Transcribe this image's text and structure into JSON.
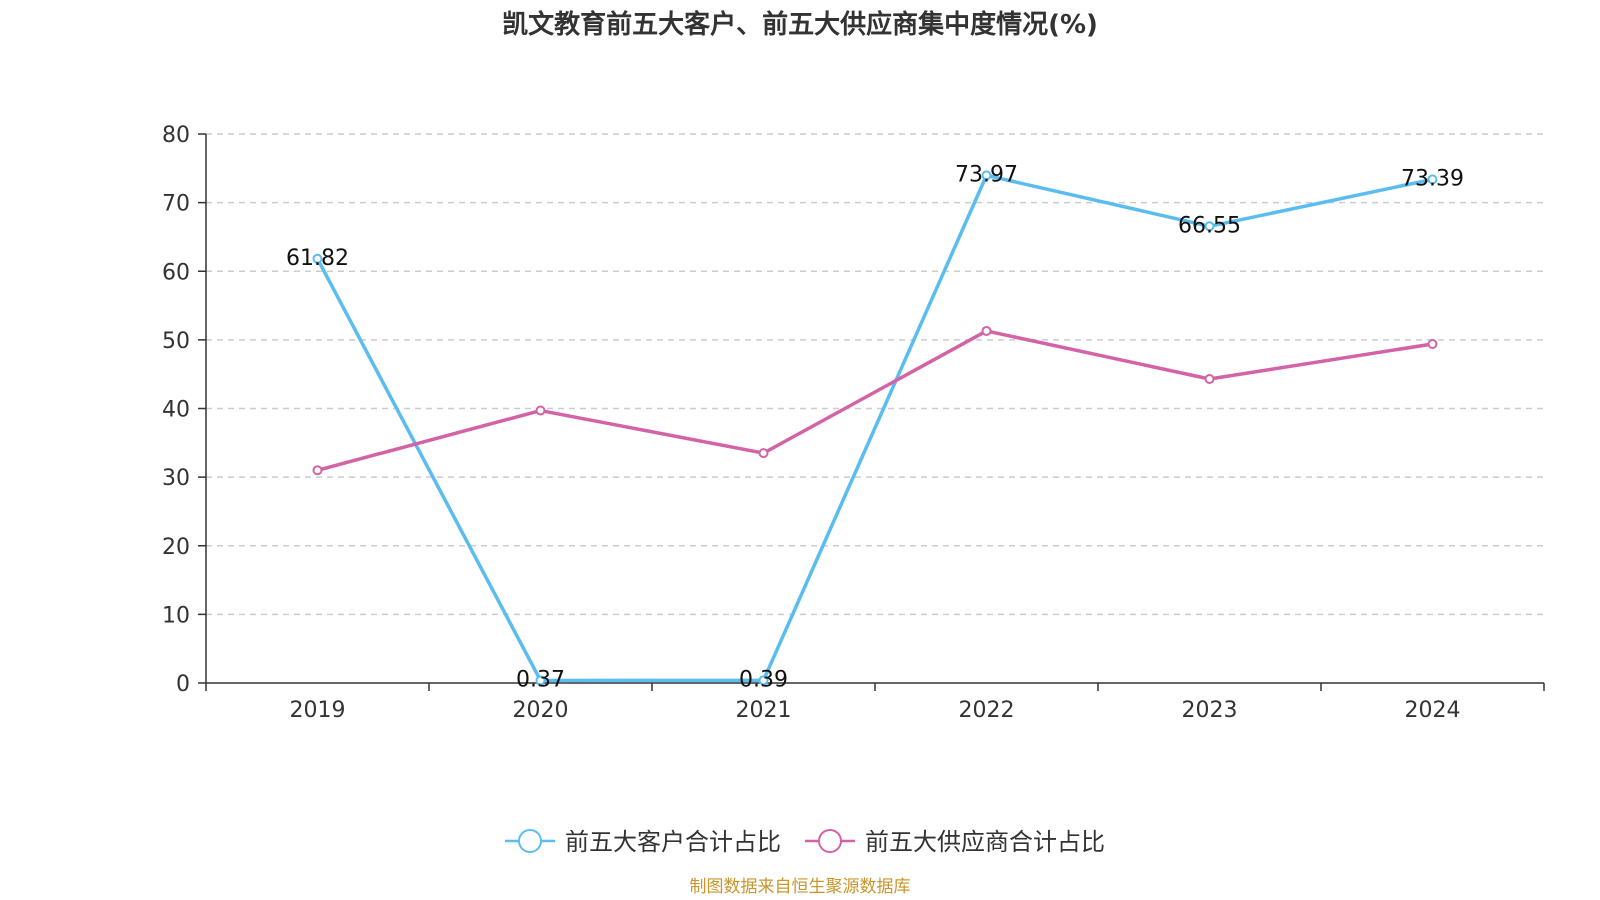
{
  "chart_data": {
    "type": "line",
    "title": "凯文教育前五大客户、前五大供应商集中度情况(%)",
    "categories": [
      "2019",
      "2020",
      "2021",
      "2022",
      "2023",
      "2024"
    ],
    "ylim": [
      0,
      80
    ],
    "yticks": [
      0,
      10,
      20,
      30,
      40,
      50,
      60,
      70,
      80
    ],
    "grid": "horizontal-dashed",
    "legend_position": "bottom-center",
    "series": [
      {
        "name": "前五大客户合计占比",
        "color": "#5bbcf0",
        "values": [
          61.82,
          0.37,
          0.39,
          73.97,
          66.55,
          73.39
        ],
        "labels": [
          "61.82",
          "0.37",
          "0.39",
          "73.97",
          "66.55",
          "73.39"
        ]
      },
      {
        "name": "前五大供应商合计占比",
        "color": "#d462a6",
        "values": [
          31.0,
          39.7,
          33.5,
          51.3,
          44.3,
          49.4
        ],
        "labels": null
      }
    ],
    "source": "制图数据来自恒生聚源数据库"
  }
}
